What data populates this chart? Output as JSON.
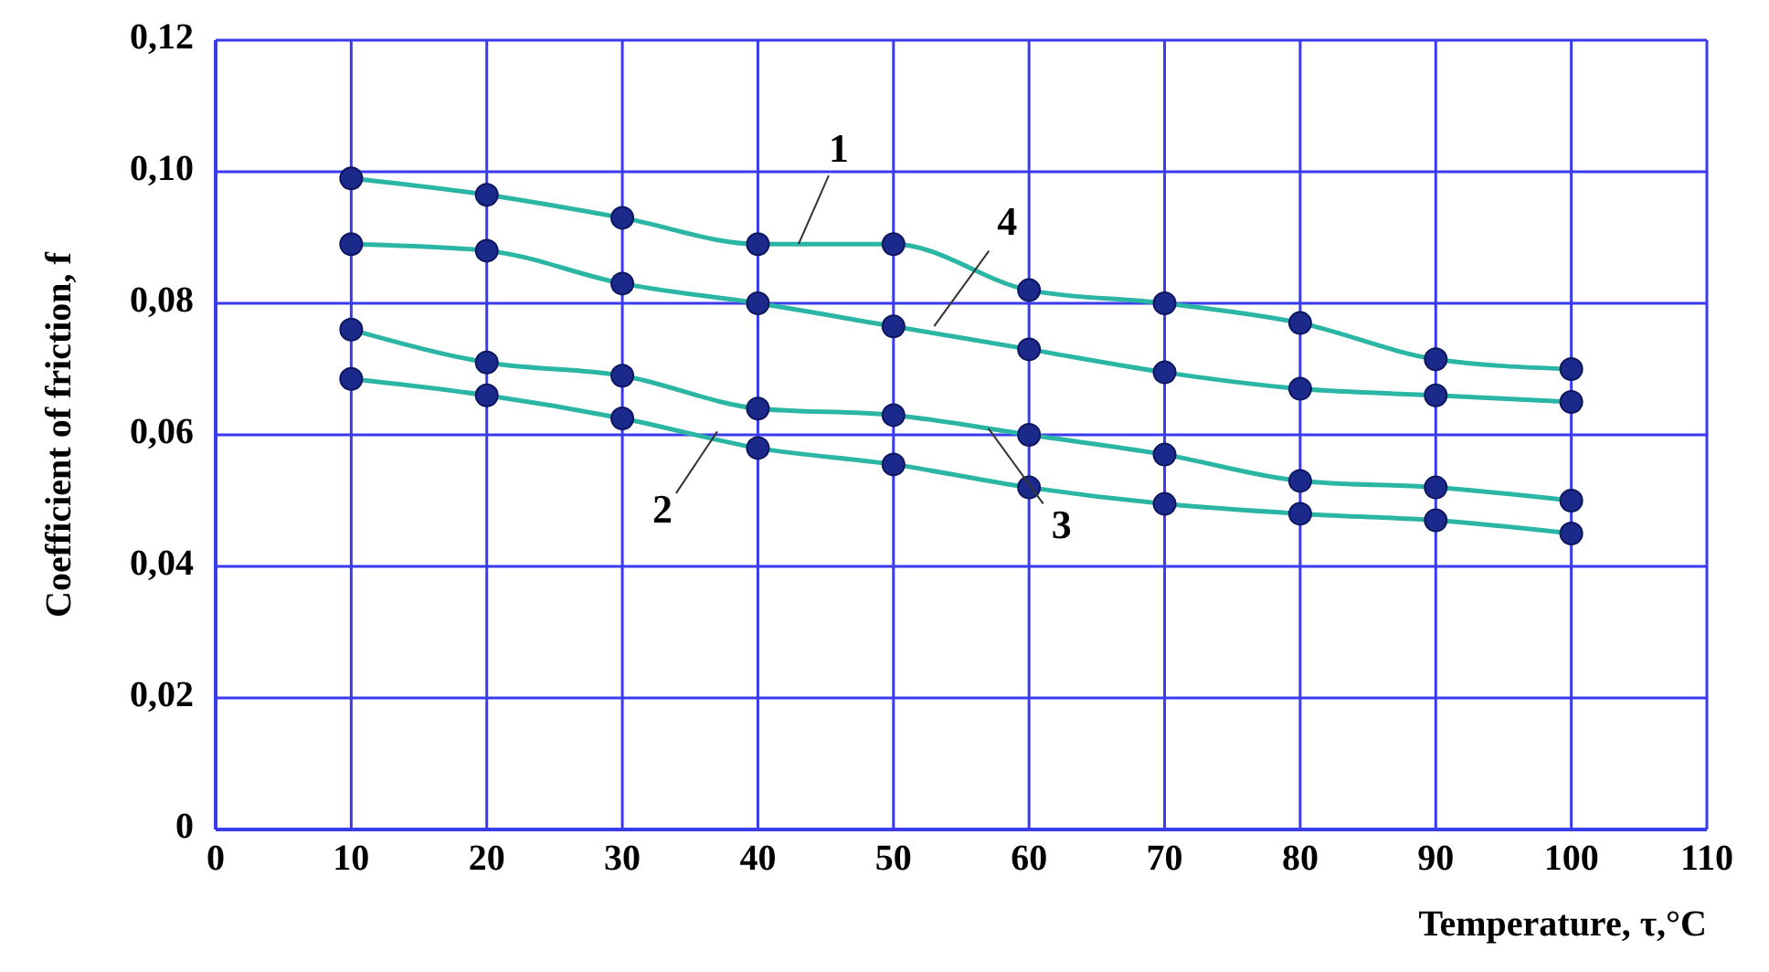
{
  "chart_data": {
    "type": "line",
    "xlabel": "Temperature, τ,°C",
    "ylabel": "Coefficient of friction, f",
    "x": [
      10,
      20,
      30,
      40,
      50,
      60,
      70,
      80,
      90,
      100
    ],
    "series": [
      {
        "color": "#2ab5a5",
        "values": [
          0.099,
          0.0965,
          0.093,
          0.089,
          0.089,
          0.082,
          0.08,
          0.077,
          0.0715,
          0.07
        ]
      },
      {
        "color": "#2ab5a5",
        "values": [
          0.0685,
          0.066,
          0.0625,
          0.058,
          0.0555,
          0.052,
          0.0495,
          0.048,
          0.047,
          0.045
        ]
      },
      {
        "color": "#2ab5a5",
        "values": [
          0.076,
          0.071,
          0.069,
          0.064,
          0.063,
          0.06,
          0.057,
          0.053,
          0.052,
          0.05
        ]
      },
      {
        "color": "#2ab5a5",
        "values": [
          0.089,
          0.088,
          0.083,
          0.08,
          0.0765,
          0.073,
          0.0695,
          0.067,
          0.066,
          0.065
        ]
      }
    ],
    "annotations": [
      {
        "text": "1",
        "x": 43,
        "y": 0.089
      },
      {
        "text": "2",
        "x": 37,
        "y": 0.0605
      },
      {
        "text": "3",
        "x": 57,
        "y": 0.061
      },
      {
        "text": "4",
        "x": 53,
        "y": 0.0765
      }
    ],
    "xlim": [
      0,
      110
    ],
    "xticks": [
      0,
      10,
      20,
      30,
      40,
      50,
      60,
      70,
      80,
      90,
      100,
      110
    ],
    "ylim": [
      0,
      0.12
    ],
    "yticks": [
      0,
      {
        "value": 0.02,
        "label": "0,02"
      },
      {
        "value": 0.04,
        "label": "0,04"
      },
      {
        "value": 0.06,
        "label": "0,06"
      },
      {
        "value": 0.08,
        "label": "0,08"
      },
      {
        "value": 0.1,
        "label": "0,10"
      },
      {
        "value": 0.12,
        "label": "0,12"
      }
    ],
    "grid": true,
    "marker": "circle",
    "line_style": "solid"
  }
}
